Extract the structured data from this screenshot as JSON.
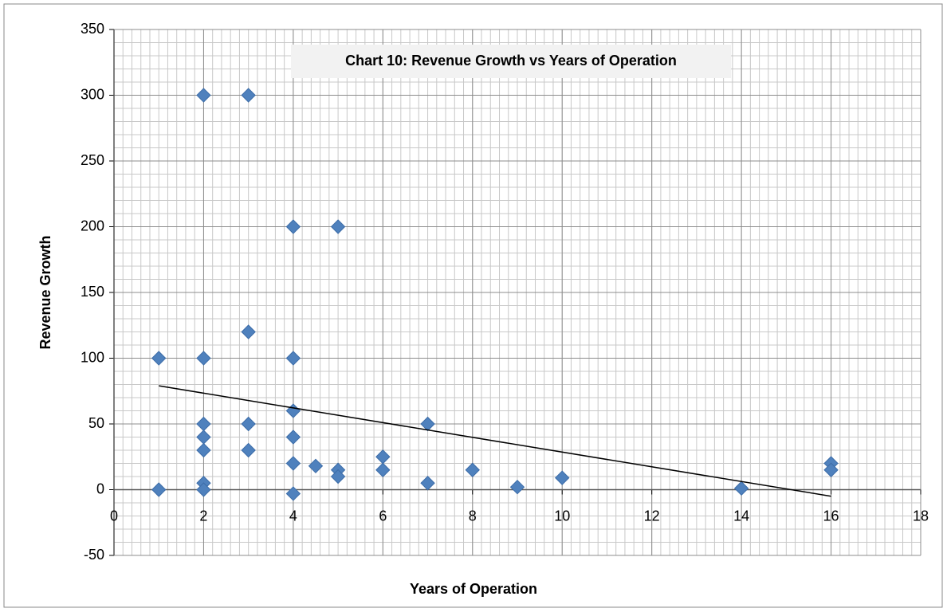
{
  "chart_data": {
    "type": "scatter",
    "title": "Chart 10: Revenue Growth vs Years of Operation",
    "xlabel": "Years of Operation",
    "ylabel": "Revenue Growth",
    "xlim": [
      0,
      18
    ],
    "ylim": [
      -50,
      350
    ],
    "xticks": [
      0,
      2,
      4,
      6,
      8,
      10,
      12,
      14,
      16,
      18
    ],
    "yticks": [
      -50,
      0,
      50,
      100,
      150,
      200,
      250,
      300,
      350
    ],
    "grid": true,
    "minor_grid": {
      "x": 0.2,
      "y": 10
    },
    "color": "#4f81bd",
    "x": [
      1,
      1,
      2,
      2,
      2,
      2,
      2,
      2,
      2,
      3,
      3,
      3,
      3,
      4,
      4,
      4,
      4,
      4,
      4,
      4.5,
      5,
      5,
      5,
      6,
      6,
      7,
      7,
      8,
      9,
      10,
      14,
      16,
      16
    ],
    "values": [
      100,
      0,
      300,
      100,
      50,
      40,
      30,
      5,
      0,
      300,
      120,
      50,
      30,
      200,
      100,
      60,
      40,
      20,
      -3,
      18,
      200,
      15,
      10,
      25,
      15,
      50,
      5,
      15,
      2,
      9,
      1,
      20,
      15
    ],
    "trendline": {
      "x": [
        1,
        16
      ],
      "values": [
        79,
        -5
      ],
      "color": "#000000"
    }
  }
}
